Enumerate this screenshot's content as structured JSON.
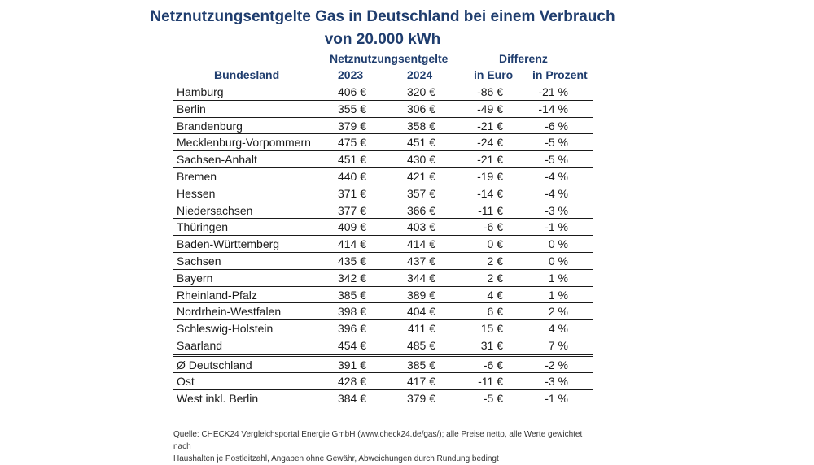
{
  "chart_data": {
    "type": "table",
    "title_line1": "Netznutzungsentgelte Gas in Deutschland bei einem Verbrauch",
    "title_line2": "von 20.000 kWh",
    "headers": {
      "group_netz": "Netznutzungsentgelte",
      "group_diff": "Differenz",
      "bundesland": "Bundesland",
      "y2023": "2023",
      "y2024": "2024",
      "euro": "in Euro",
      "pct": "in Prozent"
    },
    "rows": [
      {
        "name": "Hamburg",
        "v2023": "406 €",
        "v2024": "320 €",
        "diff_euro": "-86 €",
        "diff_pct": "-21 %"
      },
      {
        "name": "Berlin",
        "v2023": "355 €",
        "v2024": "306 €",
        "diff_euro": "-49 €",
        "diff_pct": "-14 %"
      },
      {
        "name": "Brandenburg",
        "v2023": "379 €",
        "v2024": "358 €",
        "diff_euro": "-21 €",
        "diff_pct": "-6 %"
      },
      {
        "name": "Mecklenburg-Vorpommern",
        "v2023": "475 €",
        "v2024": "451 €",
        "diff_euro": "-24 €",
        "diff_pct": "-5 %"
      },
      {
        "name": "Sachsen-Anhalt",
        "v2023": "451 €",
        "v2024": "430 €",
        "diff_euro": "-21 €",
        "diff_pct": "-5 %"
      },
      {
        "name": "Bremen",
        "v2023": "440 €",
        "v2024": "421 €",
        "diff_euro": "-19 €",
        "diff_pct": "-4 %"
      },
      {
        "name": "Hessen",
        "v2023": "371 €",
        "v2024": "357 €",
        "diff_euro": "-14 €",
        "diff_pct": "-4 %"
      },
      {
        "name": "Niedersachsen",
        "v2023": "377 €",
        "v2024": "366 €",
        "diff_euro": "-11 €",
        "diff_pct": "-3 %"
      },
      {
        "name": "Thüringen",
        "v2023": "409 €",
        "v2024": "403 €",
        "diff_euro": "-6 €",
        "diff_pct": "-1 %"
      },
      {
        "name": "Baden-Württemberg",
        "v2023": "414 €",
        "v2024": "414 €",
        "diff_euro": "0 €",
        "diff_pct": "0 %"
      },
      {
        "name": "Sachsen",
        "v2023": "435 €",
        "v2024": "437 €",
        "diff_euro": "2 €",
        "diff_pct": "0 %"
      },
      {
        "name": "Bayern",
        "v2023": "342 €",
        "v2024": "344 €",
        "diff_euro": "2 €",
        "diff_pct": "1 %"
      },
      {
        "name": "Rheinland-Pfalz",
        "v2023": "385 €",
        "v2024": "389 €",
        "diff_euro": "4 €",
        "diff_pct": "1 %"
      },
      {
        "name": "Nordrhein-Westfalen",
        "v2023": "398 €",
        "v2024": "404 €",
        "diff_euro": "6 €",
        "diff_pct": "2 %"
      },
      {
        "name": "Schleswig-Holstein",
        "v2023": "396 €",
        "v2024": "411 €",
        "diff_euro": "15 €",
        "diff_pct": "4 %"
      },
      {
        "name": "Saarland",
        "v2023": "454 €",
        "v2024": "485 €",
        "diff_euro": "31 €",
        "diff_pct": "7 %"
      }
    ],
    "summary_rows": [
      {
        "name": "Ø Deutschland",
        "v2023": "391 €",
        "v2024": "385 €",
        "diff_euro": "-6 €",
        "diff_pct": "-2 %"
      },
      {
        "name": "Ost",
        "v2023": "428 €",
        "v2024": "417 €",
        "diff_euro": "-11 €",
        "diff_pct": "-3 %"
      },
      {
        "name": "West inkl. Berlin",
        "v2023": "384 €",
        "v2024": "379 €",
        "diff_euro": "-5 €",
        "diff_pct": "-1 %"
      }
    ],
    "footnote_line1": "Quelle: CHECK24 Vergleichsportal Energie GmbH (www.check24.de/gas/); alle Preise netto, alle Werte gewichtet nach",
    "footnote_line2": "Haushalten je Postleitzahl, Angaben ohne Gewähr, Abweichungen durch Rundung bedingt"
  }
}
